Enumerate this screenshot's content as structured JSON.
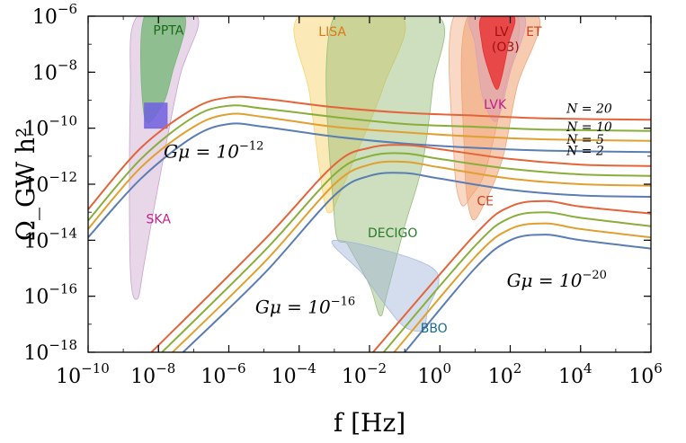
{
  "chart_data": {
    "type": "line",
    "title": "",
    "xlabel": "f [Hz]",
    "ylabel": "Ω_GW h²",
    "xscale": "log",
    "yscale": "log",
    "xlim_exp": [
      -10,
      6
    ],
    "ylim_exp": [
      -18,
      -6
    ],
    "x_ticks": [
      {
        "base": "10",
        "exp": "−10",
        "value": -10
      },
      {
        "base": "10",
        "exp": "−8",
        "value": -8
      },
      {
        "base": "10",
        "exp": "−6",
        "value": -6
      },
      {
        "base": "10",
        "exp": "−4",
        "value": -4
      },
      {
        "base": "10",
        "exp": "−2",
        "value": -2
      },
      {
        "base": "10",
        "exp": "0",
        "value": 0
      },
      {
        "base": "10",
        "exp": "2",
        "value": 2
      },
      {
        "base": "10",
        "exp": "4",
        "value": 4
      },
      {
        "base": "10",
        "exp": "6",
        "value": 6
      }
    ],
    "y_ticks": [
      {
        "base": "10",
        "exp": "−6",
        "value": -6
      },
      {
        "base": "10",
        "exp": "−8",
        "value": -8
      },
      {
        "base": "10",
        "exp": "−10",
        "value": -10
      },
      {
        "base": "10",
        "exp": "−12",
        "value": -12
      },
      {
        "base": "10",
        "exp": "−14",
        "value": -14
      },
      {
        "base": "10",
        "exp": "−16",
        "value": -16
      },
      {
        "base": "10",
        "exp": "−18",
        "value": -18
      }
    ],
    "n_colors": {
      "N=2": "#5a7db4",
      "N=5": "#e0a030",
      "N=10": "#8aae3a",
      "N=20": "#e4643a"
    },
    "groups": [
      {
        "label_base": "Gμ = 10",
        "label_exp": "−12",
        "series": [
          {
            "name": "N=2",
            "points": [
              [
                -10,
                -13.9
              ],
              [
                -8.5,
                -11.8
              ],
              [
                -7,
                -10.3
              ],
              [
                -6,
                -9.85
              ],
              [
                -5,
                -9.95
              ],
              [
                -3,
                -10.3
              ],
              [
                -1,
                -10.55
              ],
              [
                1,
                -10.7
              ],
              [
                3,
                -10.8
              ],
              [
                6,
                -10.85
              ]
            ]
          },
          {
            "name": "N=5",
            "points": [
              [
                -10,
                -13.6
              ],
              [
                -8.5,
                -11.4
              ],
              [
                -7,
                -9.95
              ],
              [
                -6,
                -9.5
              ],
              [
                -5,
                -9.6
              ],
              [
                -3,
                -9.95
              ],
              [
                -1,
                -10.15
              ],
              [
                1,
                -10.3
              ],
              [
                3,
                -10.4
              ],
              [
                6,
                -10.45
              ]
            ]
          },
          {
            "name": "N=10",
            "points": [
              [
                -10,
                -13.3
              ],
              [
                -8.5,
                -11.1
              ],
              [
                -7,
                -9.6
              ],
              [
                -6,
                -9.2
              ],
              [
                -5,
                -9.3
              ],
              [
                -3,
                -9.6
              ],
              [
                -1,
                -9.85
              ],
              [
                1,
                -9.95
              ],
              [
                3,
                -10.05
              ],
              [
                6,
                -10.1
              ]
            ]
          },
          {
            "name": "N=20",
            "points": [
              [
                -10,
                -12.9
              ],
              [
                -8.5,
                -10.7
              ],
              [
                -7,
                -9.3
              ],
              [
                -6,
                -8.9
              ],
              [
                -5,
                -8.95
              ],
              [
                -3,
                -9.25
              ],
              [
                -1,
                -9.45
              ],
              [
                1,
                -9.55
              ],
              [
                3,
                -9.65
              ],
              [
                6,
                -9.7
              ]
            ]
          }
        ]
      },
      {
        "label_base": "Gμ = 10",
        "label_exp": "−16",
        "series": [
          {
            "name": "N=2",
            "points": [
              [
                -7.3,
                -18
              ],
              [
                -5,
                -15.2
              ],
              [
                -3,
                -12.4
              ],
              [
                -2,
                -11.7
              ],
              [
                -1,
                -11.6
              ],
              [
                0,
                -11.8
              ],
              [
                2,
                -12.2
              ],
              [
                4,
                -12.4
              ],
              [
                6,
                -12.45
              ]
            ]
          },
          {
            "name": "N=5",
            "points": [
              [
                -7.6,
                -18
              ],
              [
                -5,
                -14.8
              ],
              [
                -3,
                -12.0
              ],
              [
                -2,
                -11.3
              ],
              [
                -1,
                -11.2
              ],
              [
                0,
                -11.4
              ],
              [
                2,
                -11.8
              ],
              [
                4,
                -12.0
              ],
              [
                6,
                -12.05
              ]
            ]
          },
          {
            "name": "N=10",
            "points": [
              [
                -7.9,
                -18
              ],
              [
                -5,
                -14.4
              ],
              [
                -3,
                -11.65
              ],
              [
                -2,
                -11.0
              ],
              [
                -1,
                -10.9
              ],
              [
                0,
                -11.1
              ],
              [
                2,
                -11.45
              ],
              [
                4,
                -11.65
              ],
              [
                6,
                -11.7
              ]
            ]
          },
          {
            "name": "N=20",
            "points": [
              [
                -8.2,
                -18
              ],
              [
                -5,
                -14.0
              ],
              [
                -3,
                -11.3
              ],
              [
                -2,
                -10.7
              ],
              [
                -1,
                -10.6
              ],
              [
                0,
                -10.75
              ],
              [
                2,
                -11.1
              ],
              [
                4,
                -11.3
              ],
              [
                6,
                -11.35
              ]
            ]
          }
        ]
      },
      {
        "label_base": "Gμ = 10",
        "label_exp": "−20",
        "series": [
          {
            "name": "N=2",
            "points": [
              [
                -1.0,
                -18
              ],
              [
                1,
                -15.0
              ],
              [
                2,
                -14.0
              ],
              [
                3,
                -13.8
              ],
              [
                4,
                -14.0
              ],
              [
                6,
                -14.3
              ]
            ]
          },
          {
            "name": "N=5",
            "points": [
              [
                -1.3,
                -18
              ],
              [
                1,
                -14.6
              ],
              [
                2,
                -13.6
              ],
              [
                3,
                -13.4
              ],
              [
                4,
                -13.6
              ],
              [
                6,
                -13.9
              ]
            ]
          },
          {
            "name": "N=10",
            "points": [
              [
                -1.6,
                -18
              ],
              [
                1,
                -14.2
              ],
              [
                2,
                -13.2
              ],
              [
                3,
                -13.0
              ],
              [
                4,
                -13.2
              ],
              [
                6,
                -13.5
              ]
            ]
          },
          {
            "name": "N=20",
            "points": [
              [
                -1.9,
                -18
              ],
              [
                1,
                -13.8
              ],
              [
                2,
                -12.8
              ],
              [
                3,
                -12.6
              ],
              [
                4,
                -12.8
              ],
              [
                6,
                -13.05
              ]
            ]
          }
        ]
      }
    ],
    "n_labels": [
      {
        "text": "N = 20",
        "series": "N=20"
      },
      {
        "text": "N = 10",
        "series": "N=10"
      },
      {
        "text": "N = 5",
        "series": "N=5"
      },
      {
        "text": "N = 2",
        "series": "N=2"
      }
    ],
    "regions": [
      {
        "name": "PPTA",
        "label": "PPTA",
        "fill": "#3cc83c",
        "opacity": 0.75,
        "label_color": "#1a6a1a",
        "polygon": [
          [
            -8.4,
            -6
          ],
          [
            -7.25,
            -6
          ],
          [
            -7.6,
            -8.0
          ],
          [
            -7.9,
            -9.2
          ],
          [
            -8.4,
            -9.6
          ]
        ]
      },
      {
        "name": "PTA-box",
        "label": "",
        "fill": "#3a3af0",
        "opacity": 0.85,
        "label_color": "#3a3af0",
        "polygon": [
          [
            -8.4,
            -9.1
          ],
          [
            -7.75,
            -9.1
          ],
          [
            -7.75,
            -10.0
          ],
          [
            -8.4,
            -10.0
          ]
        ]
      },
      {
        "name": "SKA",
        "label": "SKA",
        "fill": "#c49ac8",
        "opacity": 0.4,
        "label_color": "#c0208a",
        "polygon": [
          [
            -8.6,
            -6
          ],
          [
            -6.9,
            -6
          ],
          [
            -7.4,
            -8.2
          ],
          [
            -8.0,
            -12.0
          ],
          [
            -8.4,
            -14.8
          ],
          [
            -8.6,
            -16.1
          ],
          [
            -8.8,
            -15.0
          ],
          [
            -8.8,
            -9.0
          ]
        ]
      },
      {
        "name": "LISA",
        "label": "LISA",
        "fill": "#f6d060",
        "opacity": 0.45,
        "label_color": "#e07810",
        "polygon": [
          [
            -4.0,
            -6
          ],
          [
            -1.1,
            -6
          ],
          [
            -1.6,
            -8.5
          ],
          [
            -2.4,
            -11.0
          ],
          [
            -2.9,
            -12.5
          ],
          [
            -3.1,
            -13.0
          ],
          [
            -3.3,
            -12.5
          ],
          [
            -3.7,
            -8.8
          ]
        ]
      },
      {
        "name": "DECIGO",
        "label": "DECIGO",
        "fill": "#90b870",
        "opacity": 0.45,
        "label_color": "#2a7a2a",
        "polygon": [
          [
            -3.0,
            -6
          ],
          [
            -0.05,
            -6
          ],
          [
            -0.2,
            -8.5
          ],
          [
            -0.5,
            -11.3
          ],
          [
            -1.0,
            -13.5
          ],
          [
            -1.5,
            -15.9
          ],
          [
            -1.7,
            -16.7
          ],
          [
            -2.0,
            -15.6
          ],
          [
            -2.6,
            -14.2
          ],
          [
            -3.0,
            -13.2
          ]
        ]
      },
      {
        "name": "BBO",
        "label": "BBO",
        "fill": "#a0b4d8",
        "opacity": 0.45,
        "label_color": "#1a6a8a",
        "polygon": [
          [
            -3.0,
            -14.0
          ],
          [
            -2.2,
            -15.2
          ],
          [
            -1.5,
            -16.4
          ],
          [
            -1.0,
            -17.1
          ],
          [
            -0.5,
            -17.2
          ],
          [
            -0.35,
            -16.5
          ],
          [
            -0.2,
            -15.0
          ]
        ]
      },
      {
        "name": "ET",
        "label": "ET",
        "fill": "#f0a070",
        "opacity": 0.55,
        "label_color": "#d0401a",
        "polygon": [
          [
            0.8,
            -6
          ],
          [
            2.8,
            -6
          ],
          [
            2.2,
            -8.5
          ],
          [
            1.8,
            -11.0
          ],
          [
            1.3,
            -12.6
          ],
          [
            0.9,
            -13.2
          ],
          [
            0.7,
            -11.0
          ]
        ]
      },
      {
        "name": "CE",
        "label": "CE",
        "fill": "#f0a070",
        "opacity": 0.4,
        "label_color": "#d0401a",
        "polygon": [
          [
            0.4,
            -6
          ],
          [
            2.2,
            -6
          ],
          [
            1.8,
            -8.8
          ],
          [
            1.3,
            -11.5
          ],
          [
            0.9,
            -12.4
          ],
          [
            0.6,
            -12.7
          ],
          [
            0.4,
            -11.0
          ]
        ]
      },
      {
        "name": "LVK",
        "label": "LVK",
        "fill": "#d8a0b8",
        "opacity": 0.55,
        "label_color": "#c0208a",
        "polygon": [
          [
            0.9,
            -6
          ],
          [
            2.4,
            -6
          ],
          [
            2.0,
            -8.0
          ],
          [
            1.7,
            -9.5
          ],
          [
            1.5,
            -9.7
          ],
          [
            1.2,
            -8.8
          ],
          [
            1.0,
            -7.0
          ]
        ]
      },
      {
        "name": "LV-O3",
        "label": "LV",
        "sublabel": "(O3)",
        "fill": "#e82828",
        "opacity": 0.75,
        "label_color": "#a01010",
        "polygon": [
          [
            1.2,
            -6
          ],
          [
            2.1,
            -6
          ],
          [
            1.95,
            -7.0
          ],
          [
            1.75,
            -8.2
          ],
          [
            1.6,
            -8.6
          ],
          [
            1.35,
            -7.8
          ],
          [
            1.2,
            -7.0
          ]
        ]
      }
    ]
  }
}
